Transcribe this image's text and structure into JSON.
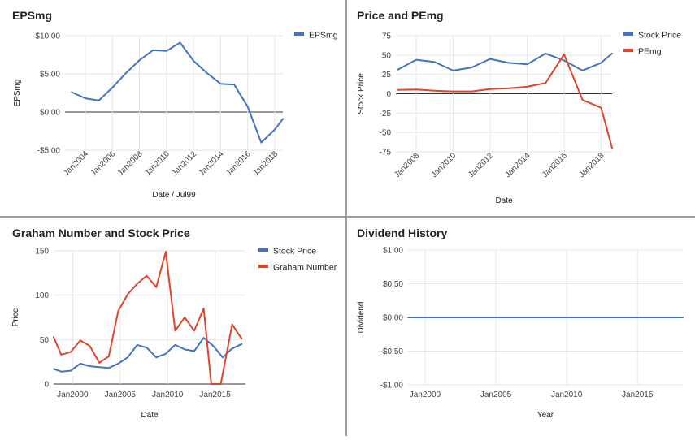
{
  "charts": [
    {
      "title": "EPSmg",
      "chart_data": {
        "type": "line",
        "title": "EPSmg",
        "xlabel": "Date / Jul99",
        "ylabel": "EPSmg",
        "x_ticks": [
          2004,
          2006,
          2008,
          2010,
          2012,
          2014,
          2016,
          2018
        ],
        "x_tick_labels": [
          "Jan2004",
          "Jan2006",
          "Jan2008",
          "Jan2010",
          "Jan2012",
          "Jan2014",
          "Jan2016",
          "Jan2018"
        ],
        "xlim": [
          2002.5,
          2018.6
        ],
        "y_ticks": [
          -5,
          0,
          5,
          10
        ],
        "y_tick_labels": [
          "-$5.00",
          "$0.00",
          "$5.00",
          "$10.00"
        ],
        "ylim": [
          -5,
          10
        ],
        "legend_position": "right",
        "series": [
          {
            "name": "EPSmg",
            "color": "#4472c4",
            "points": [
              [
                2003.0,
                2.6
              ],
              [
                2004.0,
                1.8
              ],
              [
                2005.0,
                1.5
              ],
              [
                2006.0,
                3.2
              ],
              [
                2007.0,
                5.1
              ],
              [
                2008.0,
                6.8
              ],
              [
                2009.0,
                8.1
              ],
              [
                2010.0,
                8.0
              ],
              [
                2011.0,
                9.1
              ],
              [
                2012.0,
                6.7
              ],
              [
                2013.0,
                5.1
              ],
              [
                2014.0,
                3.7
              ],
              [
                2015.0,
                3.6
              ],
              [
                2016.0,
                0.7
              ],
              [
                2017.0,
                -4.0
              ],
              [
                2018.0,
                -2.3
              ],
              [
                2018.6,
                -0.9
              ]
            ]
          }
        ]
      }
    },
    {
      "title": "Price and PEmg",
      "chart_data": {
        "type": "line",
        "title": "Price and PEmg",
        "xlabel": "Date",
        "ylabel": "Stock Price",
        "x_ticks": [
          2008,
          2010,
          2012,
          2014,
          2016,
          2018
        ],
        "x_tick_labels": [
          "Jan2008",
          "Jan2010",
          "Jan2012",
          "Jan2014",
          "Jan2016",
          "Jan2018"
        ],
        "xlim": [
          2006.9,
          2018.6
        ],
        "y_ticks": [
          -75,
          -50,
          -25,
          0,
          25,
          50,
          75
        ],
        "y_tick_labels": [
          "-75",
          "-50",
          "-25",
          "0",
          "25",
          "50",
          "75"
        ],
        "ylim": [
          -75,
          75
        ],
        "legend_position": "right",
        "series": [
          {
            "name": "Stock Price",
            "color": "#4472c4",
            "points": [
              [
                2007.0,
                31
              ],
              [
                2008.0,
                44
              ],
              [
                2009.0,
                41
              ],
              [
                2010.0,
                30
              ],
              [
                2011.0,
                34
              ],
              [
                2012.0,
                45
              ],
              [
                2013.0,
                40
              ],
              [
                2014.0,
                38
              ],
              [
                2015.0,
                52
              ],
              [
                2016.0,
                43
              ],
              [
                2017.0,
                30
              ],
              [
                2018.0,
                40
              ],
              [
                2018.6,
                52
              ]
            ]
          },
          {
            "name": "PEmg",
            "color": "#e0452a",
            "points": [
              [
                2007.0,
                5
              ],
              [
                2008.0,
                5.5
              ],
              [
                2009.0,
                4
              ],
              [
                2010.0,
                3
              ],
              [
                2011.0,
                3
              ],
              [
                2012.0,
                6
              ],
              [
                2013.0,
                7
              ],
              [
                2014.0,
                9
              ],
              [
                2015.0,
                14
              ],
              [
                2016.0,
                51
              ],
              [
                2017.0,
                -8
              ],
              [
                2018.0,
                -18
              ],
              [
                2018.6,
                -70
              ]
            ]
          }
        ]
      }
    },
    {
      "title": "Graham Number and Stock Price",
      "chart_data": {
        "type": "line",
        "title": "Graham Number and Stock Price",
        "xlabel": "Date",
        "ylabel": "Price",
        "x_ticks": [
          2000,
          2005,
          2010,
          2015
        ],
        "x_tick_labels": [
          "Jan2000",
          "Jan2005",
          "Jan2010",
          "Jan2015"
        ],
        "xlim": [
          1998.0,
          2018.2
        ],
        "y_ticks": [
          0,
          50,
          100,
          150
        ],
        "y_tick_labels": [
          "0",
          "50",
          "100",
          "150"
        ],
        "ylim": [
          0,
          150
        ],
        "legend_position": "right",
        "series": [
          {
            "name": "Stock Price",
            "color": "#4472c4",
            "points": [
              [
                1998.0,
                17
              ],
              [
                1998.8,
                14
              ],
              [
                1999.8,
                15
              ],
              [
                2000.8,
                23
              ],
              [
                2001.8,
                20
              ],
              [
                2002.8,
                19
              ],
              [
                2003.8,
                18
              ],
              [
                2004.8,
                23
              ],
              [
                2005.8,
                30
              ],
              [
                2006.8,
                44
              ],
              [
                2007.8,
                41
              ],
              [
                2008.8,
                30
              ],
              [
                2009.8,
                34
              ],
              [
                2010.8,
                44
              ],
              [
                2011.8,
                39
              ],
              [
                2012.8,
                37
              ],
              [
                2013.8,
                52
              ],
              [
                2014.8,
                43
              ],
              [
                2015.8,
                30
              ],
              [
                2016.8,
                40
              ],
              [
                2017.8,
                45
              ]
            ]
          },
          {
            "name": "Graham Number",
            "color": "#e0452a",
            "points": [
              [
                1998.0,
                53
              ],
              [
                1998.8,
                33
              ],
              [
                1999.8,
                36
              ],
              [
                2000.8,
                49
              ],
              [
                2001.8,
                43
              ],
              [
                2002.8,
                24
              ],
              [
                2003.8,
                31
              ],
              [
                2004.8,
                82
              ],
              [
                2005.8,
                101
              ],
              [
                2006.8,
                113
              ],
              [
                2007.8,
                122
              ],
              [
                2008.8,
                109
              ],
              [
                2009.8,
                149
              ],
              [
                2010.8,
                60
              ],
              [
                2011.8,
                75
              ],
              [
                2012.8,
                60
              ],
              [
                2013.8,
                85
              ],
              [
                2014.6,
                0
              ],
              [
                2015.6,
                0
              ],
              [
                2016.8,
                67
              ],
              [
                2017.8,
                51
              ]
            ]
          }
        ]
      }
    },
    {
      "title": "Dividend History",
      "chart_data": {
        "type": "line",
        "title": "Dividend History",
        "xlabel": "Year",
        "ylabel": "Dividend",
        "x_ticks": [
          2000,
          2005,
          2010,
          2015
        ],
        "x_tick_labels": [
          "Jan2000",
          "Jan2005",
          "Jan2010",
          "Jan2015"
        ],
        "xlim": [
          1998.8,
          2018.2
        ],
        "y_ticks": [
          -1,
          -0.5,
          0,
          0.5,
          1
        ],
        "y_tick_labels": [
          "-$1.00",
          "-$0.50",
          "$0.00",
          "$0.50",
          "$1.00"
        ],
        "ylim": [
          -1,
          1
        ],
        "legend_position": "none",
        "series": [
          {
            "color": "#4472c4",
            "points": [
              [
                1998.8,
                0
              ],
              [
                2018.2,
                0
              ]
            ]
          }
        ]
      }
    }
  ]
}
